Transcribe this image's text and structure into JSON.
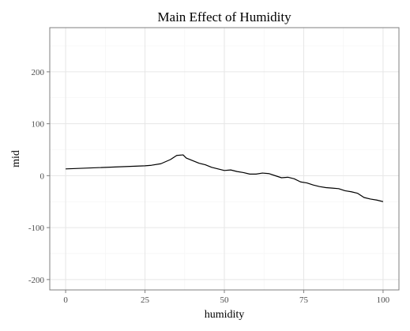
{
  "chart_data": {
    "type": "line",
    "title": "Main Effect of Humidity",
    "xlabel": "humidity",
    "ylabel": "mid",
    "xlim": [
      -5,
      105
    ],
    "ylim": [
      -220,
      285
    ],
    "x_ticks": [
      0,
      25,
      50,
      75,
      100
    ],
    "x_tick_labels": [
      "0",
      "25",
      "50",
      "75",
      "100"
    ],
    "y_ticks": [
      -200,
      -100,
      0,
      100,
      200
    ],
    "y_tick_labels": [
      "-200",
      "-100",
      "0",
      "100",
      "200"
    ],
    "grid": true,
    "x": [
      0,
      25,
      27,
      30,
      33,
      35,
      37,
      38,
      40,
      42,
      44,
      46,
      48,
      50,
      52,
      54,
      56,
      58,
      60,
      62,
      64,
      66,
      68,
      70,
      72,
      74,
      76,
      78,
      80,
      82,
      84,
      86,
      88,
      90,
      92,
      94,
      96,
      98,
      100
    ],
    "y": [
      13,
      19,
      20,
      23,
      31,
      39,
      40,
      34,
      29,
      24,
      21,
      16,
      13,
      10,
      11,
      8,
      6,
      3,
      3,
      5,
      4,
      0,
      -4,
      -3,
      -6,
      -12,
      -14,
      -18,
      -21,
      -23,
      -24,
      -25,
      -29,
      -31,
      -34,
      -42,
      -45,
      -47,
      -50
    ]
  }
}
